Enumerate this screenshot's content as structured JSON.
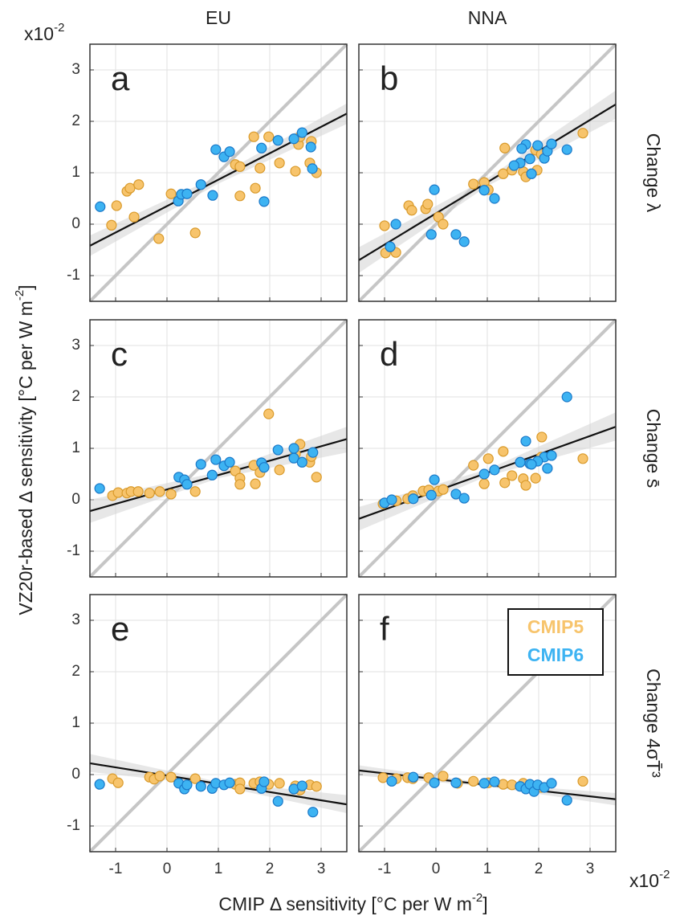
{
  "figure": {
    "column_titles": [
      "EU",
      "NNA"
    ],
    "row_titles": [
      "Change λ",
      "Change s̄",
      "Change 4σT̄³"
    ],
    "x_label": [
      "CMIP Δ sensitivity [°C per W m",
      "-2",
      "]"
    ],
    "y_label": [
      "VZ20r-based Δ sensitivity [°C per W m",
      "-2",
      "]"
    ],
    "x_multiplier": {
      "base": "x10",
      "exponent": "-2"
    },
    "y_multiplier": {
      "base": "x10",
      "exponent": "-2"
    }
  },
  "chart_data": [
    {
      "type": "scatter",
      "panel_label": "a",
      "xlim": [
        -1.5,
        3.5
      ],
      "ylim": [
        -1.5,
        3.5
      ],
      "xticks": [
        -1,
        0,
        1,
        2,
        3
      ],
      "yticks": [
        -1,
        0,
        1,
        2,
        3
      ],
      "grid": true,
      "identity_line": true,
      "xtick_labels": false,
      "ytick_labels": true,
      "fit": {
        "x": [
          -1.5,
          3.5
        ],
        "y": [
          -0.42,
          2.15
        ]
      },
      "fit_band": {
        "x": [
          -1.5,
          1.0,
          3.5
        ],
        "lower": [
          -0.62,
          0.79,
          1.95
        ],
        "upper": [
          -0.22,
          0.94,
          2.35
        ]
      },
      "series": [
        {
          "name": "CMIP5",
          "color": "#f7c46c",
          "edge_color": "#d99a2b",
          "x": [
            -1.08,
            -0.98,
            -0.78,
            -0.72,
            -0.55,
            -0.64,
            -0.16,
            0.08,
            0.55,
            1.33,
            1.42,
            1.42,
            1.69,
            1.72,
            1.81,
            1.98,
            2.19,
            2.5,
            2.56,
            2.59,
            2.78,
            2.81,
            2.91
          ],
          "values": [
            -0.02,
            0.36,
            0.64,
            0.7,
            0.77,
            0.14,
            -0.28,
            0.59,
            -0.17,
            1.16,
            1.12,
            0.55,
            1.7,
            0.7,
            1.09,
            1.7,
            1.19,
            1.03,
            1.55,
            1.7,
            1.19,
            1.61,
            1.0
          ]
        },
        {
          "name": "CMIP6",
          "color": "#3db3f2",
          "edge_color": "#1a78c8",
          "x": [
            -1.3,
            0.22,
            0.28,
            0.39,
            0.66,
            0.89,
            0.95,
            1.11,
            1.22,
            1.84,
            1.89,
            2.16,
            2.47,
            2.63,
            2.8,
            2.83
          ],
          "values": [
            0.34,
            0.45,
            0.58,
            0.59,
            0.77,
            0.56,
            1.45,
            1.31,
            1.41,
            1.48,
            0.44,
            1.63,
            1.66,
            1.78,
            1.5,
            1.08
          ]
        }
      ]
    },
    {
      "type": "scatter",
      "panel_label": "b",
      "xlim": [
        -1.5,
        3.5
      ],
      "ylim": [
        -1.5,
        3.5
      ],
      "xticks": [
        -1,
        0,
        1,
        2,
        3
      ],
      "yticks": [
        -1,
        0,
        1,
        2,
        3
      ],
      "grid": true,
      "identity_line": true,
      "xtick_labels": false,
      "ytick_labels": false,
      "fit": {
        "x": [
          -1.5,
          3.5
        ],
        "y": [
          -0.7,
          2.33
        ]
      },
      "fit_band": {
        "x": [
          -1.5,
          1.0,
          3.5
        ],
        "lower": [
          -0.95,
          0.74,
          2.05
        ],
        "upper": [
          -0.45,
          0.89,
          2.6
        ]
      },
      "series": [
        {
          "name": "CMIP5",
          "color": "#f7c46c",
          "edge_color": "#d99a2b",
          "x": [
            -1.0,
            -0.98,
            -0.78,
            -0.53,
            -0.47,
            -0.2,
            -0.16,
            0.05,
            0.14,
            0.73,
            0.94,
            1.02,
            1.31,
            1.34,
            1.48,
            1.7,
            1.75,
            1.94,
            2.05,
            1.97,
            2.86
          ],
          "values": [
            -0.03,
            -0.56,
            -0.55,
            0.36,
            0.27,
            0.3,
            0.39,
            0.14,
            0.0,
            0.78,
            0.81,
            0.67,
            0.98,
            1.48,
            1.05,
            1.02,
            0.92,
            1.44,
            1.36,
            1.05,
            1.77
          ]
        },
        {
          "name": "CMIP6",
          "color": "#3db3f2",
          "edge_color": "#1a78c8",
          "x": [
            -0.89,
            -0.78,
            -0.03,
            -0.09,
            0.39,
            0.55,
            0.94,
            1.14,
            2.11,
            2.17,
            2.25,
            2.55,
            1.98,
            1.83,
            1.75,
            1.64,
            1.86,
            1.52,
            1.67
          ],
          "values": [
            -0.44,
            0.0,
            0.67,
            -0.2,
            -0.2,
            -0.34,
            0.66,
            0.5,
            1.28,
            1.42,
            1.56,
            1.45,
            1.53,
            1.27,
            1.55,
            1.19,
            0.98,
            1.14,
            1.47
          ]
        }
      ]
    },
    {
      "type": "scatter",
      "panel_label": "c",
      "xlim": [
        -1.5,
        3.5
      ],
      "ylim": [
        -1.5,
        3.5
      ],
      "xticks": [
        -1,
        0,
        1,
        2,
        3
      ],
      "yticks": [
        -1,
        0,
        1,
        2,
        3
      ],
      "grid": true,
      "identity_line": true,
      "xtick_labels": false,
      "ytick_labels": true,
      "fit": {
        "x": [
          -1.5,
          3.5
        ],
        "y": [
          -0.22,
          1.18
        ]
      },
      "fit_band": {
        "x": [
          -1.5,
          1.0,
          3.5
        ],
        "lower": [
          -0.45,
          0.42,
          0.92
        ],
        "upper": [
          0.0,
          0.54,
          1.42
        ]
      },
      "series": [
        {
          "name": "CMIP5",
          "color": "#f7c46c",
          "edge_color": "#d99a2b",
          "x": [
            -1.06,
            -0.95,
            -0.78,
            -0.7,
            -0.56,
            -0.34,
            -0.14,
            0.08,
            0.55,
            1.33,
            1.42,
            1.42,
            1.69,
            1.72,
            1.81,
            1.98,
            2.19,
            2.5,
            2.59,
            2.78,
            2.81,
            2.91
          ],
          "values": [
            0.08,
            0.14,
            0.13,
            0.16,
            0.16,
            0.13,
            0.16,
            0.11,
            0.16,
            0.56,
            0.42,
            0.3,
            0.67,
            0.31,
            0.53,
            1.67,
            0.58,
            0.89,
            1.08,
            0.73,
            0.84,
            0.44
          ]
        },
        {
          "name": "CMIP6",
          "color": "#3db3f2",
          "edge_color": "#1a78c8",
          "x": [
            -1.31,
            0.23,
            0.34,
            0.39,
            0.66,
            0.88,
            0.95,
            1.11,
            1.22,
            1.84,
            1.89,
            2.16,
            2.47,
            2.47,
            2.63,
            2.84
          ],
          "values": [
            0.22,
            0.44,
            0.39,
            0.3,
            0.69,
            0.48,
            0.78,
            0.66,
            0.73,
            0.72,
            0.63,
            0.97,
            0.81,
            1.0,
            0.73,
            0.92
          ]
        }
      ]
    },
    {
      "type": "scatter",
      "panel_label": "d",
      "xlim": [
        -1.5,
        3.5
      ],
      "ylim": [
        -1.5,
        3.5
      ],
      "xticks": [
        -1,
        0,
        1,
        2,
        3
      ],
      "yticks": [
        -1,
        0,
        1,
        2,
        3
      ],
      "grid": true,
      "identity_line": true,
      "xtick_labels": false,
      "ytick_labels": false,
      "fit": {
        "x": [
          -1.5,
          3.5
        ],
        "y": [
          -0.37,
          1.42
        ]
      },
      "fit_band": {
        "x": [
          -1.5,
          1.0,
          3.5
        ],
        "lower": [
          -0.6,
          0.46,
          1.15
        ],
        "upper": [
          -0.14,
          0.59,
          1.7
        ]
      },
      "series": [
        {
          "name": "CMIP5",
          "color": "#f7c46c",
          "edge_color": "#d99a2b",
          "x": [
            -1.03,
            -0.77,
            -0.55,
            -0.45,
            -0.25,
            -0.14,
            0.05,
            0.14,
            0.73,
            0.94,
            1.02,
            1.31,
            1.34,
            1.48,
            1.7,
            1.75,
            1.94,
            2.05,
            2.06,
            2.86
          ],
          "values": [
            -0.08,
            -0.02,
            0.02,
            0.08,
            0.17,
            0.19,
            0.17,
            0.2,
            0.67,
            0.31,
            0.8,
            0.94,
            0.33,
            0.47,
            0.41,
            0.28,
            0.42,
            0.83,
            1.22,
            0.8
          ]
        },
        {
          "name": "CMIP6",
          "color": "#3db3f2",
          "edge_color": "#1a78c8",
          "x": [
            -1.0,
            -0.86,
            -0.44,
            -0.03,
            -0.09,
            0.39,
            0.55,
            0.94,
            1.14,
            2.11,
            2.17,
            2.25,
            2.55,
            1.98,
            1.83,
            1.75,
            1.64,
            1.86
          ],
          "values": [
            -0.06,
            0.0,
            0.02,
            0.39,
            0.09,
            0.11,
            0.03,
            0.5,
            0.58,
            0.83,
            0.61,
            0.86,
            2.0,
            0.75,
            0.7,
            1.14,
            0.73,
            0.69
          ]
        }
      ]
    },
    {
      "type": "scatter",
      "panel_label": "e",
      "xlim": [
        -1.5,
        3.5
      ],
      "ylim": [
        -1.5,
        3.5
      ],
      "xticks": [
        -1,
        0,
        1,
        2,
        3
      ],
      "yticks": [
        -1,
        0,
        1,
        2,
        3
      ],
      "grid": true,
      "identity_line": true,
      "xtick_labels": true,
      "ytick_labels": true,
      "fit": {
        "x": [
          -1.5,
          3.5
        ],
        "y": [
          0.22,
          -0.58
        ]
      },
      "fit_band": {
        "x": [
          -1.5,
          1.0,
          3.5
        ],
        "lower": [
          0.05,
          -0.22,
          -0.75
        ],
        "upper": [
          0.4,
          -0.14,
          -0.4
        ]
      },
      "series": [
        {
          "name": "CMIP5",
          "color": "#f7c46c",
          "edge_color": "#d99a2b",
          "x": [
            -1.06,
            -0.95,
            -0.34,
            -0.25,
            -0.14,
            0.08,
            0.55,
            1.33,
            1.42,
            1.42,
            1.69,
            1.81,
            1.98,
            2.19,
            2.5,
            2.59,
            2.78,
            2.91
          ],
          "values": [
            -0.08,
            -0.16,
            -0.05,
            -0.09,
            -0.03,
            -0.05,
            -0.08,
            -0.19,
            -0.16,
            -0.28,
            -0.17,
            -0.14,
            -0.19,
            -0.17,
            -0.22,
            -0.3,
            -0.2,
            -0.23
          ]
        },
        {
          "name": "CMIP6",
          "color": "#3db3f2",
          "edge_color": "#1a78c8",
          "x": [
            -1.31,
            0.23,
            0.34,
            0.39,
            0.66,
            0.88,
            0.95,
            1.11,
            1.22,
            1.84,
            1.89,
            2.16,
            2.47,
            2.63,
            2.84
          ],
          "values": [
            -0.19,
            -0.17,
            -0.28,
            -0.2,
            -0.23,
            -0.27,
            -0.17,
            -0.2,
            -0.16,
            -0.27,
            -0.14,
            -0.52,
            -0.28,
            -0.22,
            -0.73
          ]
        }
      ]
    },
    {
      "type": "scatter",
      "panel_label": "f",
      "xlim": [
        -1.5,
        3.5
      ],
      "ylim": [
        -1.5,
        3.5
      ],
      "xticks": [
        -1,
        0,
        1,
        2,
        3
      ],
      "yticks": [
        -1,
        0,
        1,
        2,
        3
      ],
      "grid": true,
      "identity_line": true,
      "xtick_labels": true,
      "ytick_labels": false,
      "legend": "upper right",
      "fit": {
        "x": [
          -1.5,
          3.5
        ],
        "y": [
          0.08,
          -0.48
        ]
      },
      "fit_band": {
        "x": [
          -1.5,
          1.0,
          3.5
        ],
        "lower": [
          -0.02,
          -0.23,
          -0.6
        ],
        "upper": [
          0.18,
          -0.17,
          -0.36
        ]
      },
      "series": [
        {
          "name": "CMIP5",
          "color": "#f7c46c",
          "edge_color": "#d99a2b",
          "x": [
            -1.03,
            -0.77,
            -0.55,
            -0.45,
            -0.14,
            0.14,
            0.42,
            0.73,
            1.02,
            1.31,
            1.48,
            1.7,
            1.86,
            2.05,
            2.86
          ],
          "values": [
            -0.06,
            -0.08,
            -0.06,
            -0.08,
            -0.06,
            -0.03,
            -0.17,
            -0.13,
            -0.16,
            -0.19,
            -0.2,
            -0.17,
            -0.27,
            -0.25,
            -0.13
          ]
        },
        {
          "name": "CMIP6",
          "color": "#3db3f2",
          "edge_color": "#1a78c8",
          "x": [
            -0.86,
            -0.44,
            -0.03,
            0.39,
            0.94,
            1.14,
            1.64,
            1.75,
            1.83,
            1.91,
            1.98,
            2.11,
            2.25,
            2.55
          ],
          "values": [
            -0.13,
            -0.05,
            -0.16,
            -0.16,
            -0.17,
            -0.14,
            -0.23,
            -0.28,
            -0.19,
            -0.33,
            -0.2,
            -0.25,
            -0.17,
            -0.5
          ]
        }
      ]
    }
  ]
}
